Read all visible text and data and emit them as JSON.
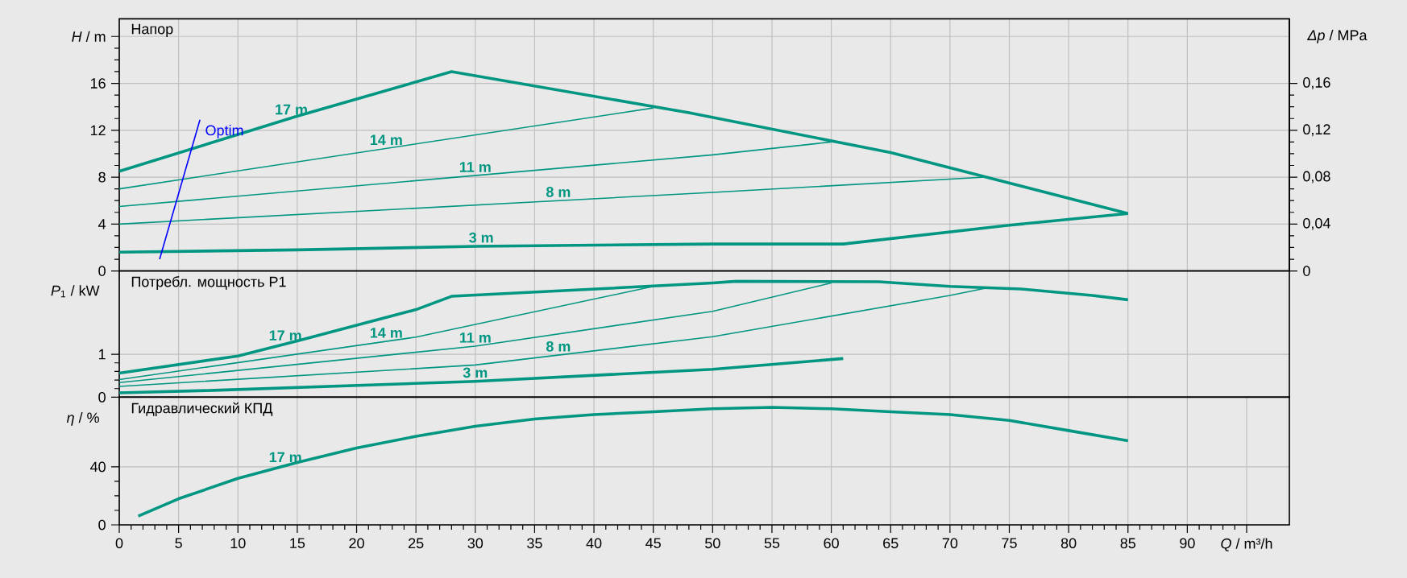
{
  "chart_data": [
    {
      "type": "line",
      "title": "Напор",
      "y2label": "*Δp* / MPa",
      "xlim": [
        0,
        98.6
      ],
      "ylim": [
        0,
        21.5
      ],
      "y2lim": [
        0,
        0.215
      ],
      "grid": true,
      "tick_labels": "y",
      "xticks": [
        0,
        5,
        10,
        15,
        20,
        25,
        30,
        35,
        40,
        45,
        50,
        55,
        60,
        65,
        70,
        75,
        80,
        85,
        90
      ],
      "yticks": [
        0,
        4,
        8,
        12,
        16,
        {
          "value": 20,
          "label": "*H* / m"
        }
      ],
      "y2ticks": [
        0,
        {
          "value": 0.04,
          "label": "0,04"
        },
        {
          "value": 0.08,
          "label": "0,08"
        },
        {
          "value": 0.12,
          "label": "0,12"
        },
        {
          "value": 0.16,
          "label": "0,16"
        }
      ],
      "series": [
        {
          "name": "17 m",
          "color": "#009682",
          "x": [
            0,
            15,
            28,
            48,
            65,
            85
          ],
          "values": [
            8.5,
            13.2,
            17.0,
            13.5,
            10.1,
            4.9
          ]
        },
        {
          "name": "14 m",
          "color": "#009682",
          "x": [
            0,
            45
          ],
          "values": [
            7.0,
            13.9
          ]
        },
        {
          "name": "11 m",
          "color": "#009682",
          "x": [
            0,
            50,
            60
          ],
          "values": [
            5.5,
            9.9,
            11.0
          ]
        },
        {
          "name": "8 m",
          "color": "#009682",
          "x": [
            0,
            50,
            73
          ],
          "values": [
            4.0,
            6.7,
            8.0
          ]
        },
        {
          "name": "3 m",
          "color": "#009682",
          "x": [
            0,
            15,
            30,
            50,
            61,
            75,
            85
          ],
          "values": [
            1.6,
            1.8,
            2.1,
            2.3,
            2.3,
            3.9,
            4.9
          ]
        },
        {
          "name": "Optim",
          "color": "#0000ff",
          "x": [
            3.4,
            6.8
          ],
          "values": [
            1.0,
            12.9
          ]
        }
      ]
    },
    {
      "type": "line",
      "title": "Потребл. мощность P1",
      "ylabel": "*P*$_{1}$ / kW",
      "xlim": [
        0,
        98.6
      ],
      "ylim": [
        0,
        2.94
      ],
      "grid": true,
      "tick_labels": "y",
      "xticks": [
        0,
        5,
        10,
        15,
        20,
        25,
        30,
        35,
        40,
        45,
        50,
        55,
        60,
        65,
        70,
        75,
        80,
        85,
        90
      ],
      "yticks": [
        0,
        1
      ],
      "series": [
        {
          "name": "17 m",
          "color": "#009682",
          "x": [
            0,
            10,
            15,
            25,
            28,
            50,
            52,
            64,
            70,
            76,
            82,
            85
          ],
          "values": [
            0.56,
            0.96,
            1.31,
            2.04,
            2.35,
            2.66,
            2.7,
            2.69,
            2.58,
            2.52,
            2.37,
            2.27
          ]
        },
        {
          "name": "14 m",
          "color": "#009682",
          "x": [
            0,
            25,
            45
          ],
          "values": [
            0.41,
            1.4,
            2.58
          ]
        },
        {
          "name": "11 m",
          "color": "#009682",
          "x": [
            0,
            30,
            50,
            60
          ],
          "values": [
            0.34,
            1.19,
            2.0,
            2.66
          ]
        },
        {
          "name": "8 m",
          "color": "#009682",
          "x": [
            0,
            30,
            50,
            70,
            73
          ],
          "values": [
            0.25,
            0.75,
            1.41,
            2.37,
            2.54
          ]
        },
        {
          "name": "3 m",
          "color": "#009682",
          "x": [
            0,
            8,
            30,
            50,
            61
          ],
          "values": [
            0.1,
            0.16,
            0.37,
            0.65,
            0.9
          ]
        }
      ]
    },
    {
      "type": "line",
      "title": "Гидравлический КПД",
      "ylabel": "*η* / %",
      "xlim": [
        0,
        98.6
      ],
      "ylim": [
        0,
        88
      ],
      "grid": true,
      "xticks": [
        0,
        5,
        10,
        15,
        20,
        25,
        30,
        35,
        40,
        45,
        50,
        55,
        60,
        65,
        70,
        75,
        80,
        85,
        90,
        {
          "value": 95,
          "label": "*Q* / m³/h"
        }
      ],
      "yticks": [
        0,
        40
      ],
      "series": [
        {
          "name": "17 m",
          "color": "#009682",
          "x": [
            1.6,
            5,
            10,
            15,
            20,
            25,
            30,
            35,
            40,
            45,
            50,
            55,
            60,
            65,
            70,
            75,
            80,
            85
          ],
          "values": [
            6,
            18,
            32,
            43,
            53,
            61,
            68,
            73,
            76,
            78,
            80,
            81,
            80,
            78,
            76,
            72,
            65,
            58
          ]
        }
      ]
    }
  ]
}
